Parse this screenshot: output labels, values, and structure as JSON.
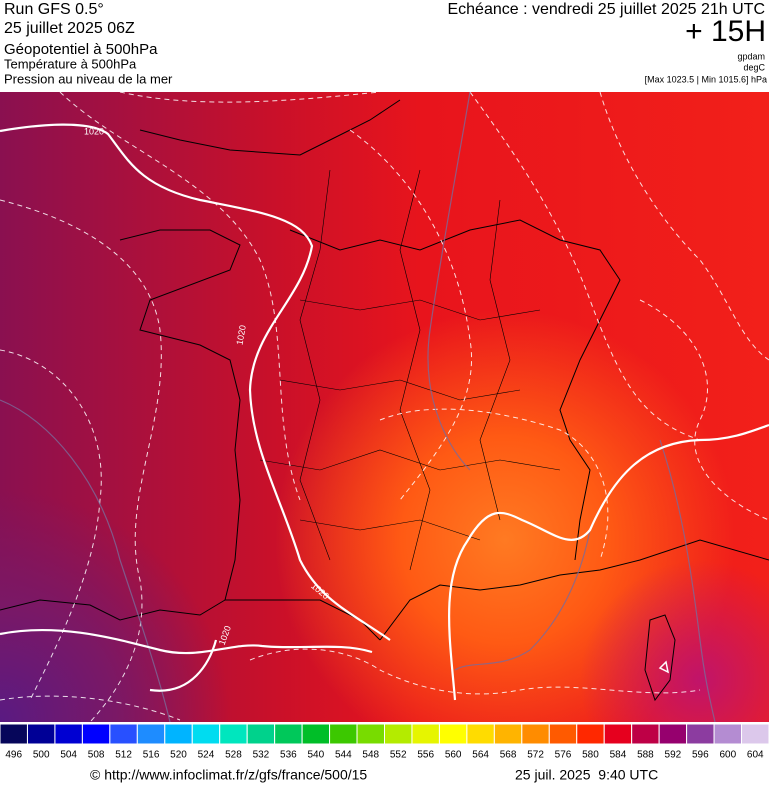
{
  "header": {
    "run": "Run GFS 0.5°",
    "date": "25 juillet 2025 06Z",
    "field1": "Géopotentiel à 500hPa",
    "field2": "Température à 500hPa",
    "field3": "Pression au niveau de la mer",
    "echeance": "Echéance : vendredi 25 juillet 2025 21h UTC",
    "lead": "+ 15H",
    "unit1": "gpdam",
    "unit2": "degC",
    "range": "[Max 1023.5 | Min 1015.6] hPa"
  },
  "map": {
    "isobar_labels": [
      "1020",
      "1020",
      "1020",
      "1020"
    ]
  },
  "colorbar": {
    "labels": [
      496,
      500,
      504,
      508,
      512,
      516,
      520,
      524,
      528,
      532,
      536,
      540,
      544,
      548,
      552,
      556,
      560,
      564,
      568,
      572,
      576,
      580,
      584,
      588,
      592,
      596,
      600,
      604
    ],
    "colors": [
      "#06065a",
      "#000096",
      "#0000d2",
      "#0000ff",
      "#2850ff",
      "#1e8cff",
      "#00b4ff",
      "#00dcf0",
      "#00e6be",
      "#00d28c",
      "#00c85a",
      "#00be28",
      "#3cc800",
      "#78dc00",
      "#b4eb00",
      "#e6f500",
      "#ffff00",
      "#ffdc00",
      "#ffb400",
      "#ff8c00",
      "#ff5a00",
      "#ff2800",
      "#e6001e",
      "#be0046",
      "#96006e",
      "#8c3ca0",
      "#b48cd2",
      "#dcc8eb"
    ]
  },
  "footer": {
    "url": "© http://www.infoclimat.fr/z/gfs/france/500/15",
    "timestamp": "25 juil. 2025  9:40 UTC"
  }
}
